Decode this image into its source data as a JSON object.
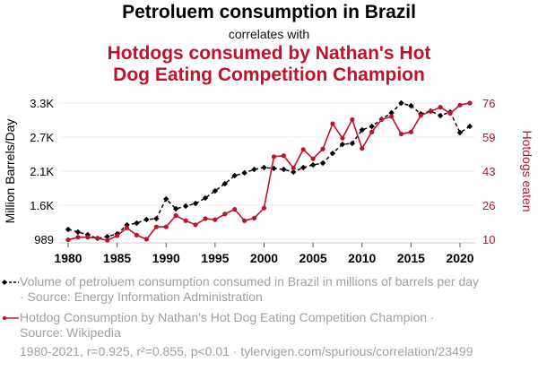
{
  "header": {
    "title": "Petroluem consumption in Brazil",
    "subtitle": "correlates with",
    "title2_line1": "Hotdogs consumed by Nathan's Hot",
    "title2_line2": "Dog Eating Competition Champion"
  },
  "colors": {
    "series1": "#000000",
    "series2": "#c0122c",
    "grid": "#eeeeee",
    "muted_text": "#a0a0a0"
  },
  "legend": {
    "series1_line1": "Volume of petroluem consumption consumed in Brazil in millions of barrels per day",
    "series1_line2": "· Source: Energy Information Administration",
    "series2_line1": "Hotdog Consumption by Nathan's Hot Dog Eating Competition Champion ·",
    "series2_line2": "Source: Wikipedia"
  },
  "footer": "1980-2021, r=0.925, r²=0.855, p<0.01 · tylervigen.com/spurious/correlation/23499",
  "chart_data": {
    "type": "line",
    "title": "Petroluem consumption in Brazil correlates with Hotdogs consumed by Nathan's Hot Dog Eating Competition Champion",
    "xlabel": "",
    "ylabel_left": "Million Barrels/Day",
    "ylabel_right": "Hotdogs eaten",
    "x": [
      1980,
      1981,
      1982,
      1983,
      1984,
      1985,
      1986,
      1987,
      1988,
      1989,
      1990,
      1991,
      1992,
      1993,
      1994,
      1995,
      1996,
      1997,
      1998,
      1999,
      2000,
      2001,
      2002,
      2003,
      2004,
      2005,
      2006,
      2007,
      2008,
      2009,
      2010,
      2011,
      2012,
      2013,
      2014,
      2015,
      2016,
      2017,
      2018,
      2019,
      2020,
      2021
    ],
    "x_ticks": [
      "1980",
      "1985",
      "1990",
      "1995",
      "2000",
      "2005",
      "2010",
      "2015",
      "2020"
    ],
    "x_tick_values": [
      1980,
      1985,
      1990,
      1995,
      2000,
      2005,
      2010,
      2015,
      2020
    ],
    "xlim": [
      1980,
      2021
    ],
    "y_left_ticks": [
      "989",
      "1.6K",
      "2.1K",
      "2.7K",
      "3.3K"
    ],
    "y_left_tick_values": [
      989,
      1567,
      2145,
      2723,
      3301
    ],
    "ylim_left": [
      989,
      3301
    ],
    "y_right_ticks": [
      "10",
      "26",
      "43",
      "59",
      "76"
    ],
    "y_right_tick_values": [
      10,
      26.5,
      43,
      59.5,
      76
    ],
    "ylim_right": [
      10,
      76
    ],
    "grid": true,
    "legend_position": "bottom",
    "series": [
      {
        "name": "Volume of petroluem consumption consumed in Brazil in millions of barrels per day",
        "axis": "left",
        "style": "dashed-diamond",
        "values": [
          1156,
          1111,
          1065,
          1004,
          1035,
          1080,
          1232,
          1263,
          1324,
          1339,
          1673,
          1506,
          1552,
          1597,
          1689,
          1810,
          1932,
          2069,
          2115,
          2175,
          2206,
          2191,
          2175,
          2130,
          2206,
          2251,
          2282,
          2449,
          2601,
          2616,
          2845,
          2905,
          3027,
          3134,
          3301,
          3255,
          3118,
          3164,
          3088,
          3149,
          2799,
          2905
        ]
      },
      {
        "name": "Hotdog Consumption by Nathan's Hot Dog Eating Competition Champion",
        "axis": "right",
        "style": "solid-circle",
        "values": [
          9.75,
          11,
          11,
          10.5,
          9.5,
          11.75,
          15.5,
          12,
          10,
          16,
          16,
          21.5,
          19,
          17,
          20,
          19.5,
          22.25,
          24.5,
          19,
          20.25,
          25.125,
          50,
          50.5,
          44.5,
          53.5,
          49,
          53.75,
          66,
          59,
          68,
          54,
          62,
          68,
          69.5,
          61,
          62,
          70,
          72,
          74,
          71,
          75,
          76
        ]
      }
    ]
  }
}
